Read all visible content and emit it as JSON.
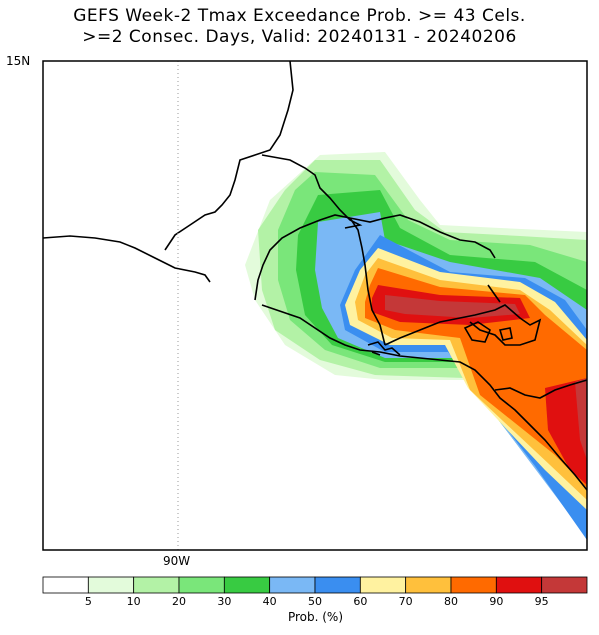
{
  "title_line1": "GEFS Week-2 Tmax Exceedance Prob. >= 43 Cels.",
  "title_line2": ">=2 Consec. Days, Valid: 20240131 - 20240206",
  "axes": {
    "lat_label": "15N",
    "lon_label": "90W"
  },
  "colorbar": {
    "label": "Prob. (%)",
    "colors": [
      "#ffffff",
      "#e3fbdb",
      "#b3f2a6",
      "#7ae67a",
      "#38cb42",
      "#7ab8f5",
      "#3a8ef0",
      "#fff2a0",
      "#ffc03c",
      "#ff6a00",
      "#e01010",
      "#c43838"
    ],
    "ticks": [
      "5",
      "10",
      "20",
      "30",
      "40",
      "50",
      "60",
      "70",
      "80",
      "90",
      "95"
    ]
  },
  "bands": [
    {
      "level": "5",
      "color": "#e3fbdb"
    },
    {
      "level": "10",
      "color": "#b3f2a6"
    },
    {
      "level": "20",
      "color": "#7ae67a"
    },
    {
      "level": "30",
      "color": "#38cb42"
    },
    {
      "level": "40",
      "color": "#7ab8f5"
    },
    {
      "level": "50",
      "color": "#3a8ef0"
    },
    {
      "level": "60",
      "color": "#fff2a0"
    },
    {
      "level": "70",
      "color": "#ffc03c"
    },
    {
      "level": "80",
      "color": "#ff6a00"
    },
    {
      "level": "90",
      "color": "#e01010"
    },
    {
      "level": "95",
      "color": "#c43838"
    }
  ]
}
